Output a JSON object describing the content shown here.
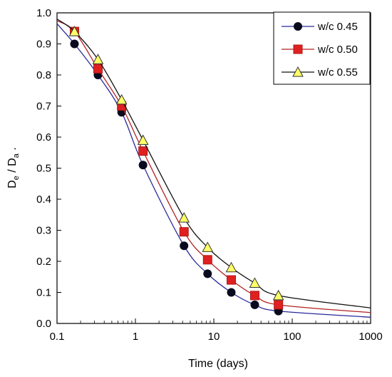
{
  "chart_data": {
    "type": "line",
    "xlabel": "Time (days)",
    "ylabel": "De / Da .",
    "ylabel_parts": {
      "D1": "D",
      "sub1": "e",
      "slash": " / ",
      "D2": "D",
      "sub2": "a",
      "trail": " ."
    },
    "xscale": "log",
    "xlim": [
      0.1,
      1000
    ],
    "ylim": [
      0.0,
      1.0
    ],
    "xticks": [
      0.1,
      1,
      10,
      100,
      1000
    ],
    "xtick_labels": [
      "0.1",
      "1",
      "10",
      "100",
      "1000"
    ],
    "yticks": [
      0.0,
      0.1,
      0.2,
      0.3,
      0.4,
      0.5,
      0.6,
      0.7,
      0.8,
      0.9,
      1.0
    ],
    "ytick_labels": [
      "0.0",
      "0.1",
      "0.2",
      "0.3",
      "0.4",
      "0.5",
      "0.6",
      "0.7",
      "0.8",
      "0.9",
      "1.0"
    ],
    "grid": false,
    "legend_position": "top-right",
    "series": [
      {
        "name": "w/c 0.45",
        "marker": "circle",
        "line_color": "#2a2a9a",
        "marker_color": "#0a0a1e",
        "x": [
          0.167,
          0.333,
          0.667,
          1.25,
          4.17,
          8.33,
          16.7,
          33.3,
          66.7
        ],
        "y": [
          0.9,
          0.8,
          0.68,
          0.51,
          0.25,
          0.16,
          0.1,
          0.06,
          0.04
        ],
        "curve_x": [
          0.1,
          0.167,
          0.333,
          0.667,
          1.25,
          4.17,
          8.33,
          16.7,
          33.3,
          66.7,
          1000
        ],
        "curve_y": [
          0.965,
          0.9,
          0.8,
          0.68,
          0.51,
          0.25,
          0.16,
          0.1,
          0.06,
          0.04,
          0.02
        ]
      },
      {
        "name": "w/c 0.50",
        "marker": "square",
        "line_color": "#b22222",
        "marker_color": "#e02020",
        "x": [
          0.167,
          0.333,
          0.667,
          1.25,
          4.17,
          8.33,
          16.7,
          33.3,
          66.7
        ],
        "y": [
          0.94,
          0.82,
          0.7,
          0.555,
          0.295,
          0.205,
          0.14,
          0.09,
          0.06
        ],
        "curve_x": [
          0.1,
          0.167,
          0.333,
          0.667,
          1.25,
          4.17,
          8.33,
          16.7,
          33.3,
          66.7,
          1000
        ],
        "curve_y": [
          0.975,
          0.94,
          0.82,
          0.7,
          0.555,
          0.295,
          0.205,
          0.14,
          0.09,
          0.06,
          0.035
        ]
      },
      {
        "name": "w/c 0.55",
        "marker": "triangle",
        "line_color": "#111111",
        "marker_color": "#ffff66",
        "x": [
          0.167,
          0.333,
          0.667,
          1.25,
          4.17,
          8.33,
          16.7,
          33.3,
          66.7
        ],
        "y": [
          0.94,
          0.85,
          0.72,
          0.59,
          0.34,
          0.245,
          0.18,
          0.13,
          0.09
        ],
        "curve_x": [
          0.1,
          0.167,
          0.333,
          0.667,
          1.25,
          4.17,
          8.33,
          16.7,
          33.3,
          66.7,
          1000
        ],
        "curve_y": [
          0.98,
          0.94,
          0.85,
          0.72,
          0.59,
          0.34,
          0.245,
          0.18,
          0.13,
          0.09,
          0.05
        ]
      }
    ]
  }
}
